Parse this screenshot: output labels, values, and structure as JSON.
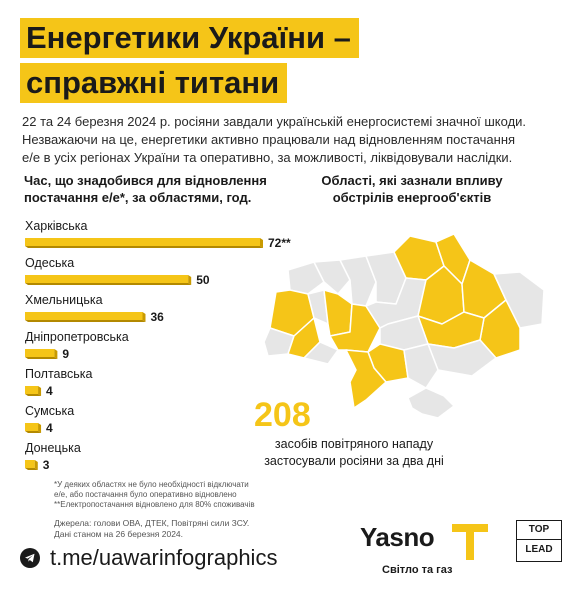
{
  "title": {
    "line1": "Енергетики України –",
    "line2": "справжні титани"
  },
  "intro": {
    "line1": "22 та 24 березня 2024 р. росіяни завдали українській енергосистемі значної шкоди.",
    "line2": "Незважаючи на це, енергетики активно працювали над відновленням постачання",
    "line3": "е/е в усіх регіонах України та оперативно, за можливості, ліквідовували наслідки."
  },
  "chart_heading": {
    "line1": "Час, що знадобився для відновлення",
    "line2": "постачання е/е*, за областями, год."
  },
  "map_heading": {
    "line1": "Області, які зазнали впливу",
    "line2": "обстрілів енергооб'єктів"
  },
  "chart_data": {
    "type": "bar",
    "orientation": "horizontal",
    "categories": [
      "Харківська",
      "Одеська",
      "Хмельницька",
      "Дніпропетровська",
      "Полтавська",
      "Сумська",
      "Донецька"
    ],
    "values": [
      72,
      50,
      36,
      9,
      4,
      4,
      3
    ],
    "value_labels": [
      "72**",
      "50",
      "36",
      "9",
      "4",
      "4",
      "3"
    ],
    "bar_color": "#f5c518",
    "xlim": [
      0,
      72
    ]
  },
  "highlight": {
    "number": "208",
    "caption_line1": "засобів повітряного нападу",
    "caption_line2": "застосували росіяни за два дні"
  },
  "footnote": {
    "line1": "*У деяких областях не було необхідності відключати",
    "line2": "е/е, або постачання було оперативно відновлено",
    "line3": "**Електропостачання відновлено для 80% споживачів"
  },
  "sources": {
    "line1": "Джерела: голови ОВА, ДТЕК, Повітряні сили ЗСУ.",
    "line2": "Дані станом на 26 березня 2024."
  },
  "telegram": {
    "icon": "telegram-icon",
    "link": "t.me/uawarinfographics"
  },
  "brand": {
    "name": "Yasno",
    "tagline": "Світло та газ"
  },
  "partner": {
    "top": "TOP",
    "bottom": "LEAD"
  },
  "colors": {
    "accent": "#f5c518",
    "map_gray": "#e6e6e6",
    "text": "#1a1a1a"
  }
}
